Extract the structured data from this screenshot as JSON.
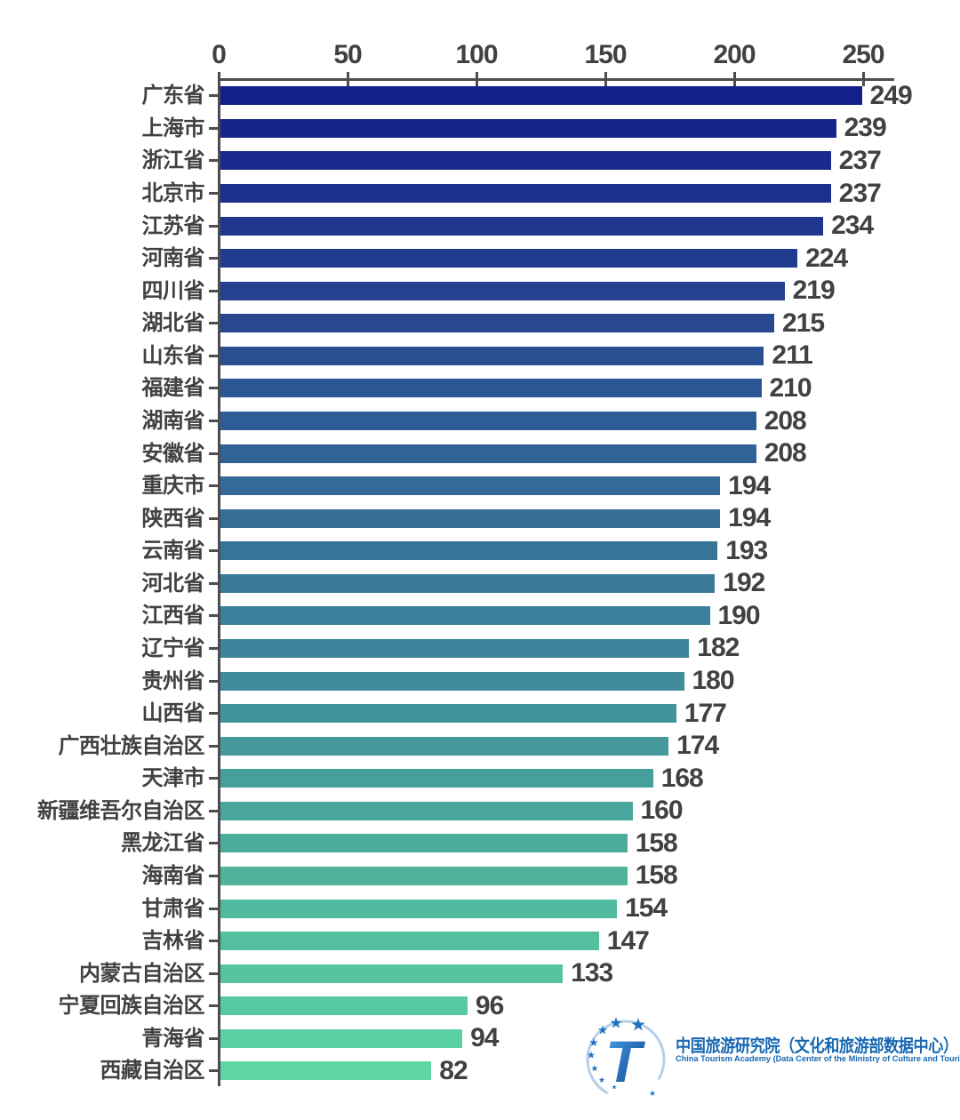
{
  "chart_data": {
    "type": "bar",
    "orientation": "horizontal",
    "title": "",
    "x_axis": {
      "position": "top",
      "ticks": [
        0,
        50,
        100,
        150,
        200,
        250
      ],
      "min": 0,
      "max": 250,
      "grid": false
    },
    "legend": null,
    "categories": [
      "广东省",
      "上海市",
      "浙江省",
      "北京市",
      "江苏省",
      "河南省",
      "四川省",
      "湖北省",
      "山东省",
      "福建省",
      "湖南省",
      "安徽省",
      "重庆市",
      "陕西省",
      "云南省",
      "河北省",
      "江西省",
      "辽宁省",
      "贵州省",
      "山西省",
      "广西壮族自治区",
      "天津市",
      "新疆维吾尔自治区",
      "黑龙江省",
      "海南省",
      "甘肃省",
      "吉林省",
      "内蒙古自治区",
      "宁夏回族自治区",
      "青海省",
      "西藏自治区"
    ],
    "values": [
      249,
      239,
      237,
      237,
      234,
      224,
      219,
      215,
      211,
      210,
      208,
      208,
      194,
      194,
      193,
      192,
      190,
      182,
      180,
      177,
      174,
      168,
      160,
      158,
      158,
      154,
      147,
      133,
      96,
      94,
      82
    ],
    "bar_colors": [
      "#12218A",
      "#15268B",
      "#182B8C",
      "#1B308C",
      "#1E368D",
      "#213B8E",
      "#24408F",
      "#274790",
      "#294E92",
      "#2C5593",
      "#2E5C94",
      "#316396",
      "#336A97",
      "#356F98",
      "#377598",
      "#397A99",
      "#3B809A",
      "#3D859B",
      "#408C9B",
      "#42929B",
      "#45999B",
      "#479F9C",
      "#4AA69C",
      "#4CAC9C",
      "#4FB39C",
      "#51B99D",
      "#54BF9F",
      "#56C4A0",
      "#58CAA1",
      "#5BD0A3",
      "#5DD6A4"
    ],
    "label_color": "#414043",
    "axis_color": "#4d4d4f"
  },
  "footer": {
    "logo_title_cn": "中国旅游研究院（文化和旅游部数据中心）",
    "logo_subtitle_en": "China Tourism Academy (Data Center of the Ministry of Culture and Tourism)",
    "logo_color": "#1767b2",
    "logo_star_color": "#1d71c0",
    "logo_t_gradient": [
      "#4aa6e8",
      "#0a3c8e"
    ]
  }
}
